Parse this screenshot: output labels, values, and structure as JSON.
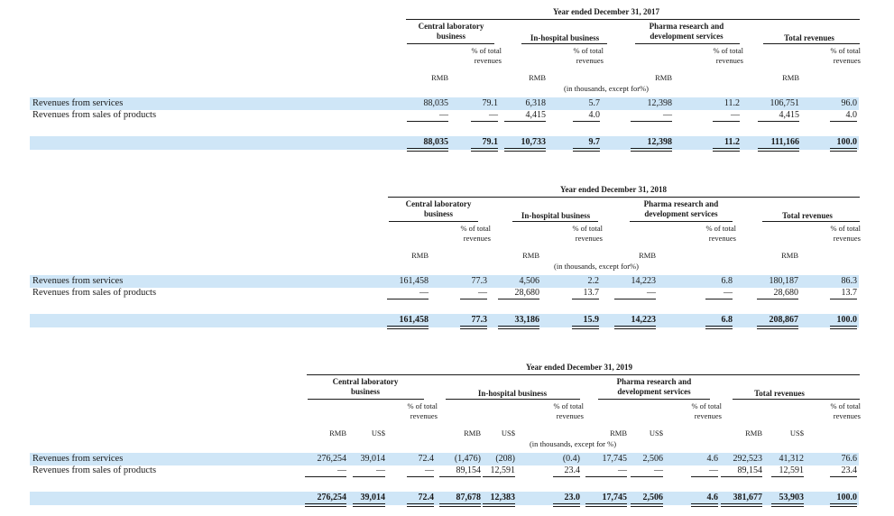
{
  "row_labels": {
    "services": "Revenues from services",
    "products": "Revenues from sales of products"
  },
  "headers": {
    "central_lab": "Central laboratory business",
    "in_hospital": "In-hospital business",
    "pharma": "Pharma research and development services",
    "total": "Total revenues",
    "rmb": "RMB",
    "usd": "US$",
    "pct": "% of total revenues",
    "units": "(in thousands, except for%)",
    "units_2019": "(in thousands, except for %)"
  },
  "tables": [
    {
      "title": "Year ended December 31, 2017",
      "services": [
        "88,035",
        "79.1",
        "6,318",
        "5.7",
        "12,398",
        "11.2",
        "106,751",
        "96.0"
      ],
      "products": [
        "—",
        "—",
        "4,415",
        "4.0",
        "—",
        "—",
        "4,415",
        "4.0"
      ],
      "total": [
        "88,035",
        "79.1",
        "10,733",
        "9.7",
        "12,398",
        "11.2",
        "111,166",
        "100.0"
      ]
    },
    {
      "title": "Year ended December 31, 2018",
      "services": [
        "161,458",
        "77.3",
        "4,506",
        "2.2",
        "14,223",
        "6.8",
        "180,187",
        "86.3"
      ],
      "products": [
        "—",
        "—",
        "28,680",
        "13.7",
        "—",
        "—",
        "28,680",
        "13.7"
      ],
      "total": [
        "161,458",
        "77.3",
        "33,186",
        "15.9",
        "14,223",
        "6.8",
        "208,867",
        "100.0"
      ]
    },
    {
      "title": "Year ended December 31, 2019",
      "services": [
        "276,254",
        "39,014",
        "72.4",
        "(1,476)",
        "(208)",
        "(0.4)",
        "17,745",
        "2,506",
        "4.6",
        "292,523",
        "41,312",
        "76.6"
      ],
      "products": [
        "—",
        "—",
        "—",
        "89,154",
        "12,591",
        "23.4",
        "—",
        "—",
        "—",
        "89,154",
        "12,591",
        "23.4"
      ],
      "total": [
        "276,254",
        "39,014",
        "72.4",
        "87,678",
        "12,383",
        "23.0",
        "17,745",
        "2,506",
        "4.6",
        "381,677",
        "53,903",
        "100.0"
      ]
    }
  ]
}
